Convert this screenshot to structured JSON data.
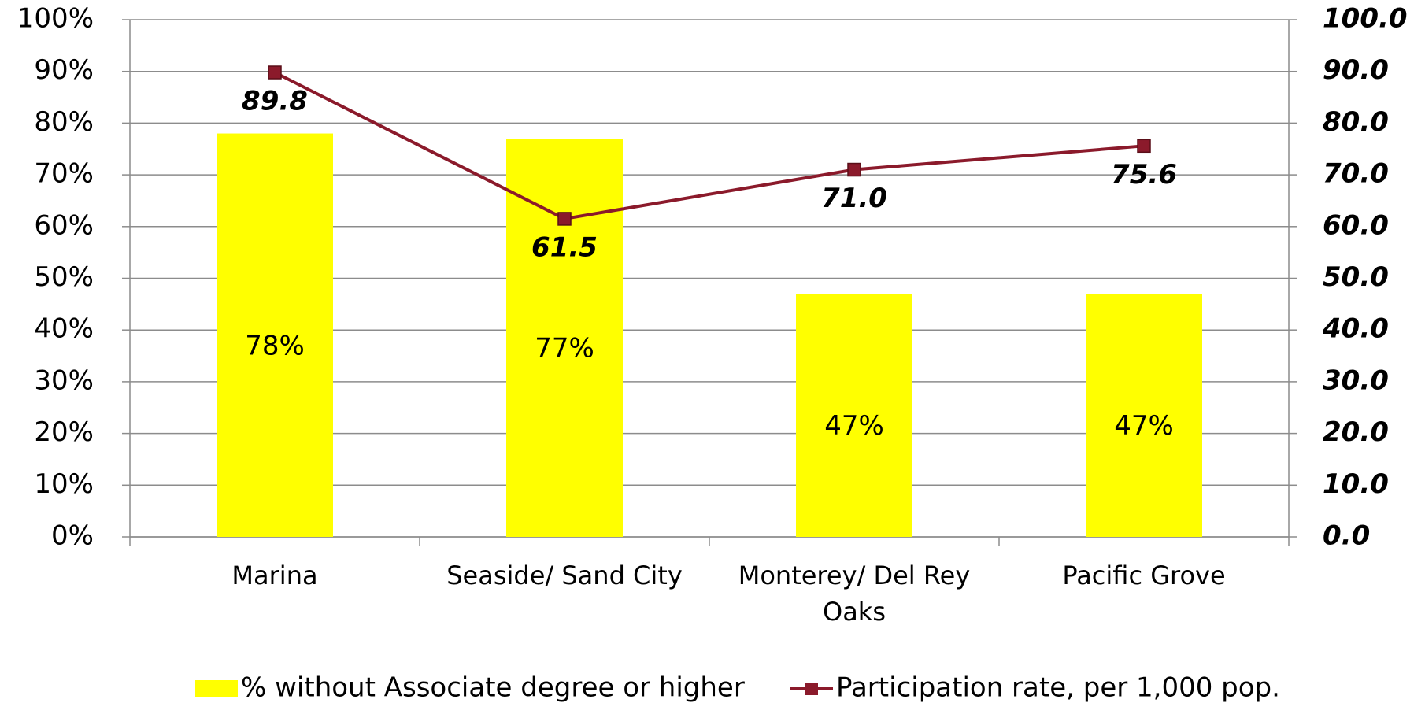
{
  "chart_data": {
    "type": "bar_line",
    "categories": [
      "Marina",
      "Seaside/ Sand City",
      "Monterey/ Del Rey Oaks",
      "Pacific Grove"
    ],
    "series": [
      {
        "name": "% without Associate degree or higher",
        "type": "bar",
        "color": "#ffff00",
        "values": [
          78,
          77,
          47,
          47
        ],
        "value_labels": [
          "78%",
          "77%",
          "47%",
          "47%"
        ]
      },
      {
        "name": "Participation rate, per 1,000 pop.",
        "type": "line",
        "axis": "y2",
        "color": "#8b1a2b",
        "values": [
          89.8,
          61.5,
          71.0,
          75.6
        ],
        "value_labels": [
          "89.8",
          "61.5",
          "71.0",
          "75.6"
        ]
      }
    ],
    "ylim": [
      0,
      100
    ],
    "yticks": [
      {
        "value": 0,
        "label": "0%"
      },
      {
        "value": 10,
        "label": "10%"
      },
      {
        "value": 20,
        "label": "20%"
      },
      {
        "value": 30,
        "label": "30%"
      },
      {
        "value": 40,
        "label": "40%"
      },
      {
        "value": 50,
        "label": "50%"
      },
      {
        "value": 60,
        "label": "60%"
      },
      {
        "value": 70,
        "label": "70%"
      },
      {
        "value": 80,
        "label": "80%"
      },
      {
        "value": 90,
        "label": "90%"
      },
      {
        "value": 100,
        "label": "100%"
      }
    ],
    "y2lim": [
      0,
      100
    ],
    "y2ticks": [
      {
        "value": 0,
        "label": "0.0"
      },
      {
        "value": 10,
        "label": "10.0"
      },
      {
        "value": 20,
        "label": "20.0"
      },
      {
        "value": 30,
        "label": "30.0"
      },
      {
        "value": 40,
        "label": "40.0"
      },
      {
        "value": 50,
        "label": "50.0"
      },
      {
        "value": 60,
        "label": "60.0"
      },
      {
        "value": 70,
        "label": "70.0"
      },
      {
        "value": 80,
        "label": "80.0"
      },
      {
        "value": 90,
        "label": "90.0"
      },
      {
        "value": 100,
        "label": "100.0"
      }
    ],
    "grid": true,
    "legend": "bottom"
  }
}
